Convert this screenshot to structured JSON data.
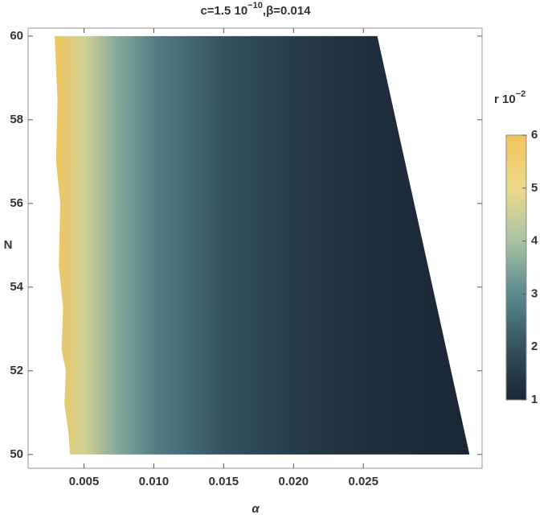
{
  "chart_data": {
    "type": "density",
    "title": "c=1.5 10",
    "title_exp": "−10",
    "title_rest": ",β=0.014",
    "x_label": "α",
    "y_label": "N",
    "xlim": [
      0.001,
      0.0335
    ],
    "ylim": [
      49.67,
      60.19
    ],
    "xticks": [
      {
        "value": 0.005,
        "label": "0.005"
      },
      {
        "value": 0.01,
        "label": "0.010"
      },
      {
        "value": 0.015,
        "label": "0.015"
      },
      {
        "value": 0.02,
        "label": "0.020"
      },
      {
        "value": 0.025,
        "label": "0.025"
      }
    ],
    "yticks": [
      50,
      52,
      54,
      56,
      58,
      60
    ],
    "region_x": [
      0.0029,
      0.0031,
      0.003,
      0.0033,
      0.0032,
      0.0035,
      0.0034,
      0.0037,
      0.0036,
      0.0039,
      0.004,
      0.026,
      0.0326
    ],
    "region_y": [
      60,
      58.5,
      57,
      56,
      54.5,
      53.5,
      52.5,
      52,
      51.2,
      50.5,
      50,
      60,
      50
    ],
    "x": [
      0.0029,
      0.005,
      0.0075,
      0.01,
      0.015,
      0.02,
      0.025,
      0.0326
    ],
    "values": [
      6,
      4.6,
      3.5,
      2.8,
      2.0,
      1.5,
      1.2,
      1.0
    ],
    "colorbar_label": "r 10",
    "colorbar_exp": "−2",
    "clim": [
      1,
      6
    ],
    "cticks": [
      1,
      2,
      3,
      4,
      5,
      6
    ],
    "colormap": [
      "#1a2635",
      "#34525f",
      "#5a8a8f",
      "#a9c4a4",
      "#ecd98a",
      "#f2c45a"
    ]
  }
}
